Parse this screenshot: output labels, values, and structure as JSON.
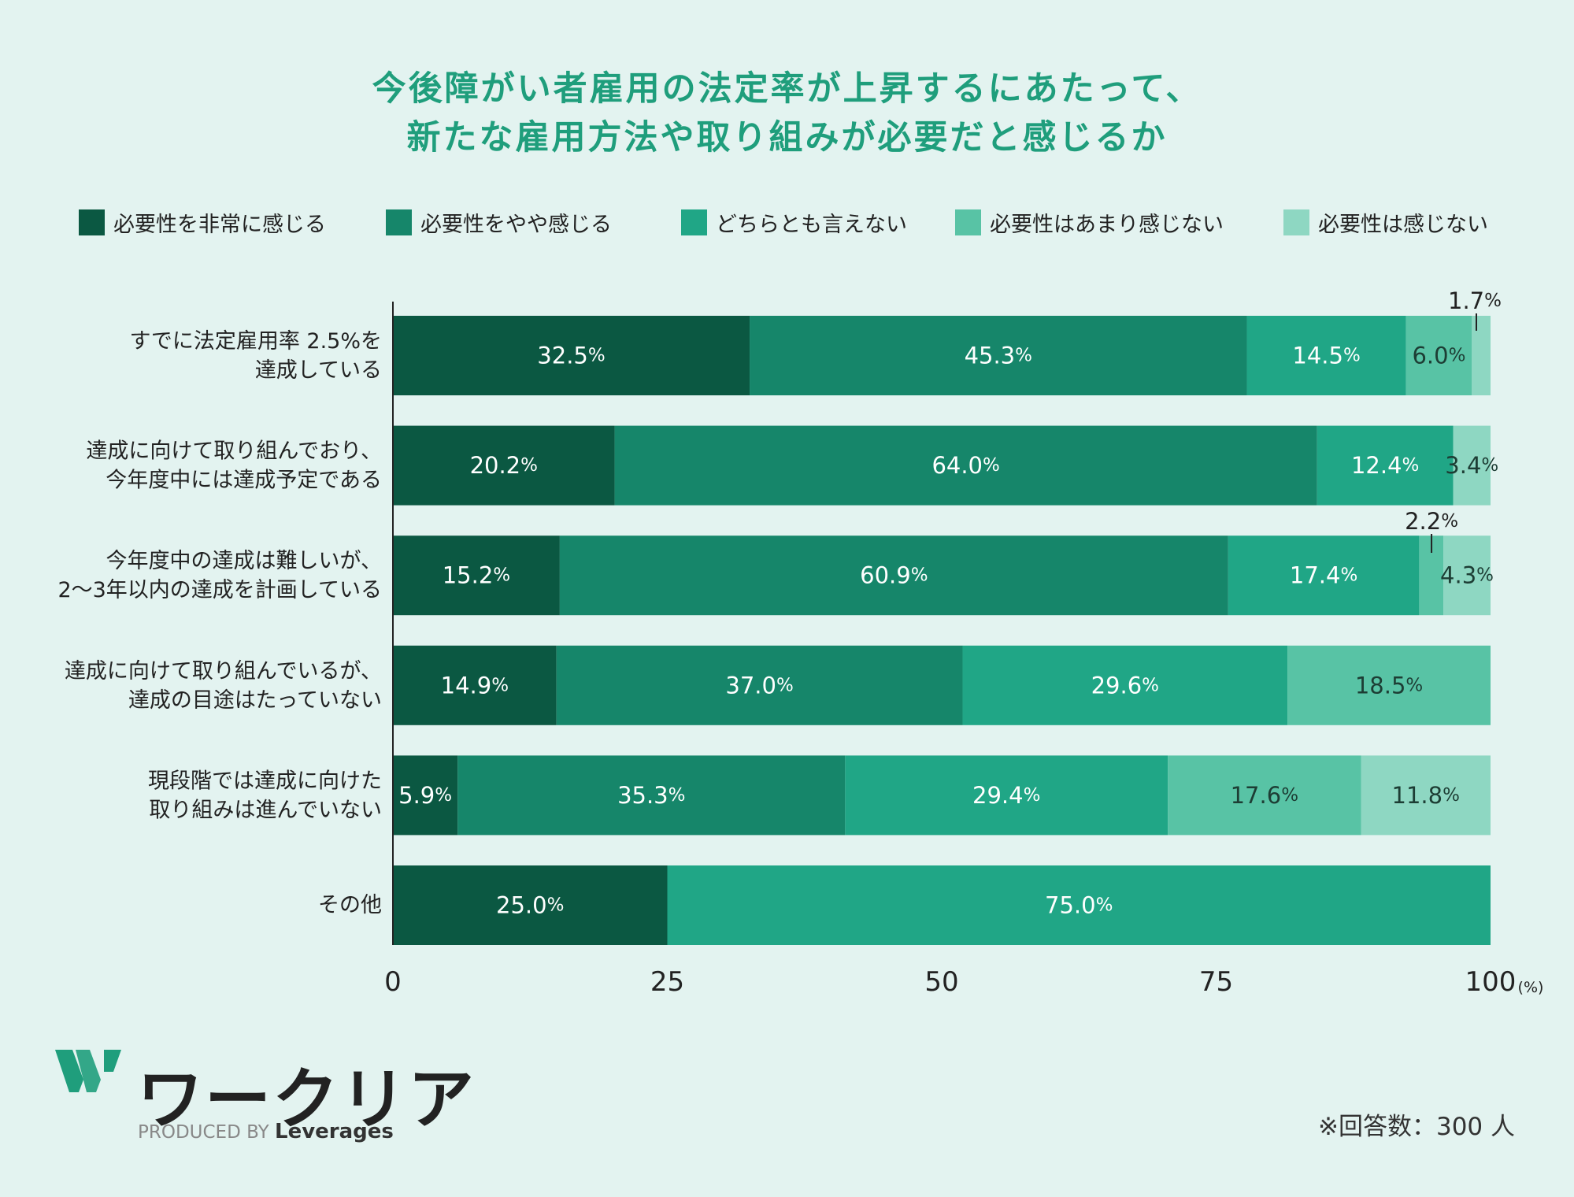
{
  "title": {
    "line1": "今後障がい者雇用の法定率が上昇するにあたって、",
    "line2": "新たな雇用方法や取り組みが必要だと感じるか"
  },
  "legend": [
    {
      "label": "必要性を非常に感じる",
      "color": "#0b5842"
    },
    {
      "label": "必要性をやや感じる",
      "color": "#16866a"
    },
    {
      "label": "どちらとも言えない",
      "color": "#20a686"
    },
    {
      "label": "必要性はあまり感じない",
      "color": "#58c3a5"
    },
    {
      "label": "必要性は感じない",
      "color": "#8ed7c2"
    }
  ],
  "chart_data": {
    "type": "bar",
    "orientation": "horizontal-stacked",
    "title": "今後障がい者雇用の法定率が上昇するにあたって、新たな雇用方法や取り組みが必要だと感じるか",
    "xlim": [
      0,
      100
    ],
    "xticks": [
      "0",
      "25",
      "50",
      "75",
      "100"
    ],
    "xunit": "(%)",
    "value_suffix": "%",
    "categories": [
      [
        "すでに法定雇用率 2.5%を",
        "達成している"
      ],
      [
        "達成に向けて取り組んでおり、",
        "今年度中には達成予定である"
      ],
      [
        "今年度中の達成は難しいが、",
        "2～3年以内の達成を計画している"
      ],
      [
        "達成に向けて取り組んでいるが、",
        "達成の目途はたっていない"
      ],
      [
        "現段階では達成に向けた",
        "取り組みは進んでいない"
      ],
      [
        "その他"
      ]
    ],
    "series": [
      {
        "name": "必要性を非常に感じる",
        "values": [
          32.5,
          20.2,
          15.2,
          14.9,
          5.9,
          25.0
        ]
      },
      {
        "name": "必要性をやや感じる",
        "values": [
          45.3,
          64.0,
          60.9,
          37.0,
          35.3,
          0
        ]
      },
      {
        "name": "どちらとも言えない",
        "values": [
          14.5,
          12.4,
          17.4,
          29.6,
          29.4,
          75.0
        ]
      },
      {
        "name": "必要性はあまり感じない",
        "values": [
          6.0,
          0,
          2.2,
          18.5,
          17.6,
          0
        ]
      },
      {
        "name": "必要性は感じない",
        "values": [
          1.7,
          3.4,
          4.3,
          0,
          11.8,
          0
        ]
      }
    ],
    "labels": [
      [
        "32.5",
        "45.3",
        "14.5",
        "6.0",
        "1.7"
      ],
      [
        "20.2",
        "64.0",
        "12.4",
        "",
        "3.4"
      ],
      [
        "15.2",
        "60.9",
        "17.4",
        "2.2",
        "4.3"
      ],
      [
        "14.9",
        "37.0",
        "29.6",
        "18.5",
        ""
      ],
      [
        "5.9",
        "35.3",
        "29.4",
        "17.6",
        "11.8"
      ],
      [
        "25.0",
        "",
        "75.0",
        "",
        ""
      ]
    ]
  },
  "logo": {
    "name": "ワークリア",
    "produced_by": "PRODUCED BY",
    "brand": "Leverages"
  },
  "note": "※回答数：300 人"
}
